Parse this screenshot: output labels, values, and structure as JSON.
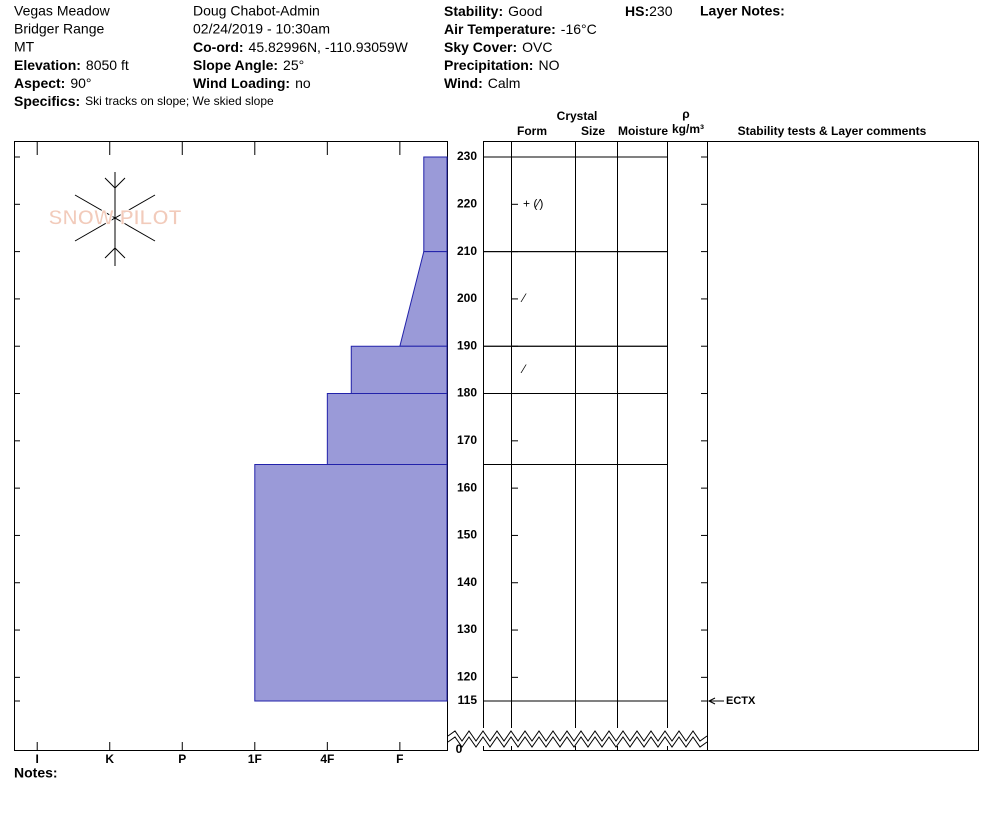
{
  "site": [
    "Vegas Meadow",
    "Bridger Range",
    "MT",
    "Doug Chabot-Admin",
    "02/24/2019 - 10:30am"
  ],
  "fields": [
    {
      "label": "Elevation:",
      "value": "8050 ft"
    },
    {
      "label": "Aspect:",
      "value": "90°"
    },
    {
      "label": "Co-ord:",
      "value": "45.82996N, -110.93059W"
    },
    {
      "label": "Slope Angle:",
      "value": "25°"
    },
    {
      "label": "Wind Loading:",
      "value": "no"
    },
    {
      "label": "Stability:",
      "value": "Good"
    },
    {
      "label": "Air Temperature:",
      "value": "-16°C"
    },
    {
      "label": "Sky Cover:",
      "value": "OVC"
    },
    {
      "label": "Precipitation:",
      "value": "NO"
    },
    {
      "label": "Wind:",
      "value": "Calm"
    },
    {
      "label": "HS:",
      "value": 230
    },
    {
      "label": "Specifics:",
      "value": "Ski tracks on slope; We skied slope"
    }
  ],
  "layer_notes_label": "Layer Notes:",
  "notes_label": "Notes:",
  "logo": "SNOW PILOT",
  "columns": {
    "crystal": "Crystal",
    "form": "Form",
    "size": "Size",
    "moisture": "Moisture",
    "rho": "ρ",
    "density_unit": "kg/m³",
    "comments": "Stability tests & Layer comments"
  },
  "chart_data": {
    "type": "hardness-profile",
    "ylim": [
      115,
      230
    ],
    "yticks": [
      115,
      120,
      130,
      140,
      150,
      160,
      170,
      180,
      190,
      200,
      210,
      220,
      230
    ],
    "axis_break": 0,
    "xlim": [
      -0.65,
      5.32
    ],
    "xticks": [
      {
        "value": 5,
        "label": "I"
      },
      {
        "value": 4,
        "label": "K"
      },
      {
        "value": 3,
        "label": "P"
      },
      {
        "value": 2,
        "label": "1F"
      },
      {
        "value": 1,
        "label": "4F"
      },
      {
        "value": 0,
        "label": "F"
      }
    ],
    "color": "#9a9ad8",
    "layers": [
      {
        "top": 230,
        "bottom": 210,
        "hardness_top": -0.33,
        "hardness_bottom": -0.33
      },
      {
        "top": 210,
        "bottom": 190,
        "hardness_top": -0.33,
        "hardness_bottom": 0
      },
      {
        "top": 190,
        "bottom": 180,
        "hardness_top": 0.67,
        "hardness_bottom": 0.67
      },
      {
        "top": 180,
        "bottom": 165,
        "hardness_top": 1,
        "hardness_bottom": 1
      },
      {
        "top": 165,
        "bottom": 115,
        "hardness_top": 2,
        "hardness_bottom": 2
      }
    ],
    "grains": [
      {
        "depth": 220,
        "form": "+ (⁄)"
      },
      {
        "depth": 200,
        "form": "⁄"
      },
      {
        "depth": 185,
        "form": "⁄"
      }
    ],
    "tests": [
      {
        "depth": 115,
        "result": "ECTX"
      }
    ]
  }
}
